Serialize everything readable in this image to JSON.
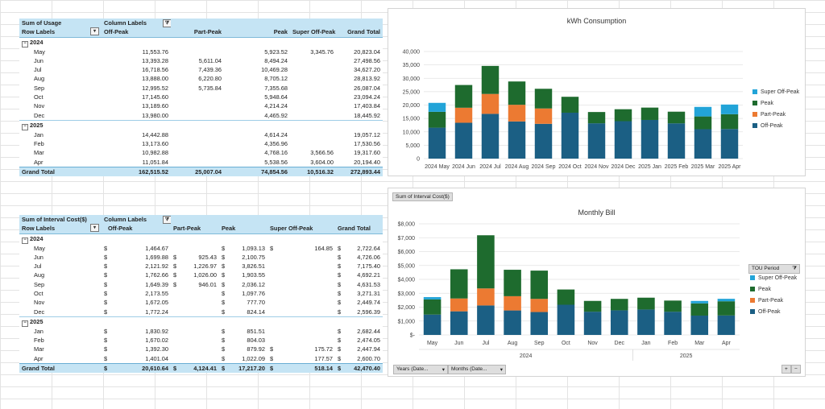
{
  "usage_pivot": {
    "corner": "Sum of Usage",
    "col_labels": "Column Labels",
    "row_labels": "Row Labels",
    "headers": [
      "Off-Peak",
      "Part-Peak",
      "Peak",
      "Super Off-Peak",
      "Grand Total"
    ],
    "years": [
      {
        "label": "2024",
        "rows": [
          {
            "m": "May",
            "v": [
              "11,553.76",
              "",
              "5,923.52",
              "3,345.76",
              "20,823.04"
            ]
          },
          {
            "m": "Jun",
            "v": [
              "13,393.28",
              "5,611.04",
              "8,494.24",
              "",
              "27,498.56"
            ]
          },
          {
            "m": "Jul",
            "v": [
              "16,718.56",
              "7,439.36",
              "10,469.28",
              "",
              "34,627.20"
            ]
          },
          {
            "m": "Aug",
            "v": [
              "13,888.00",
              "6,220.80",
              "8,705.12",
              "",
              "28,813.92"
            ]
          },
          {
            "m": "Sep",
            "v": [
              "12,995.52",
              "5,735.84",
              "7,355.68",
              "",
              "26,087.04"
            ]
          },
          {
            "m": "Oct",
            "v": [
              "17,145.60",
              "",
              "5,948.64",
              "",
              "23,094.24"
            ]
          },
          {
            "m": "Nov",
            "v": [
              "13,189.60",
              "",
              "4,214.24",
              "",
              "17,403.84"
            ]
          },
          {
            "m": "Dec",
            "v": [
              "13,980.00",
              "",
              "4,465.92",
              "",
              "18,445.92"
            ]
          }
        ]
      },
      {
        "label": "2025",
        "rows": [
          {
            "m": "Jan",
            "v": [
              "14,442.88",
              "",
              "4,614.24",
              "",
              "19,057.12"
            ]
          },
          {
            "m": "Feb",
            "v": [
              "13,173.60",
              "",
              "4,356.96",
              "",
              "17,530.56"
            ]
          },
          {
            "m": "Mar",
            "v": [
              "10,982.88",
              "",
              "4,768.16",
              "3,566.56",
              "19,317.60"
            ]
          },
          {
            "m": "Apr",
            "v": [
              "11,051.84",
              "",
              "5,538.56",
              "3,604.00",
              "20,194.40"
            ]
          }
        ]
      }
    ],
    "grand_total_label": "Grand Total",
    "grand_total": [
      "162,515.52",
      "25,007.04",
      "74,854.56",
      "10,516.32",
      "272,893.44"
    ]
  },
  "cost_pivot": {
    "corner": "Sum of Interval Cost($)",
    "col_labels": "Column Labels",
    "row_labels": "Row Labels",
    "headers": [
      "Off-Peak",
      "Part-Peak",
      "Peak",
      "Super Off-Peak",
      "Grand Total"
    ],
    "currency": "$",
    "years": [
      {
        "label": "2024",
        "rows": [
          {
            "m": "May",
            "v": [
              "1,464.67",
              "",
              "1,093.13",
              "164.85",
              "2,722.64"
            ]
          },
          {
            "m": "Jun",
            "v": [
              "1,699.88",
              "925.43",
              "2,100.75",
              "",
              "4,726.06"
            ]
          },
          {
            "m": "Jul",
            "v": [
              "2,121.92",
              "1,226.97",
              "3,826.51",
              "",
              "7,175.40"
            ]
          },
          {
            "m": "Aug",
            "v": [
              "1,762.66",
              "1,026.00",
              "1,903.55",
              "",
              "4,692.21"
            ]
          },
          {
            "m": "Sep",
            "v": [
              "1,649.39",
              "946.01",
              "2,036.12",
              "",
              "4,631.53"
            ]
          },
          {
            "m": "Oct",
            "v": [
              "2,173.55",
              "",
              "1,097.76",
              "",
              "3,271.31"
            ]
          },
          {
            "m": "Nov",
            "v": [
              "1,672.05",
              "",
              "777.70",
              "",
              "2,449.74"
            ]
          },
          {
            "m": "Dec",
            "v": [
              "1,772.24",
              "",
              "824.14",
              "",
              "2,596.39"
            ]
          }
        ]
      },
      {
        "label": "2025",
        "rows": [
          {
            "m": "Jan",
            "v": [
              "1,830.92",
              "",
              "851.51",
              "",
              "2,682.44"
            ]
          },
          {
            "m": "Feb",
            "v": [
              "1,670.02",
              "",
              "804.03",
              "",
              "2,474.05"
            ]
          },
          {
            "m": "Mar",
            "v": [
              "1,392.30",
              "",
              "879.92",
              "175.72",
              "2,447.94"
            ]
          },
          {
            "m": "Apr",
            "v": [
              "1,401.04",
              "",
              "1,022.09",
              "177.57",
              "2,600.70"
            ]
          }
        ]
      }
    ],
    "grand_total_label": "Grand Total",
    "grand_total": [
      "20,610.64",
      "4,124.41",
      "17,217.20",
      "518.14",
      "42,470.40"
    ]
  },
  "colors": {
    "off_peak": "#1b5f84",
    "part_peak": "#ec7a32",
    "peak": "#1e6b2e",
    "super_off_peak": "#22a4d8"
  },
  "chart_data": [
    {
      "type": "bar",
      "stacked": true,
      "title": "kWh Consumption",
      "categories": [
        "2024 May",
        "2024 Jun",
        "2024 Jul",
        "2024 Aug",
        "2024 Sep",
        "2024 Oct",
        "2024 Nov",
        "2024 Dec",
        "2025 Jan",
        "2025 Feb",
        "2025 Mar",
        "2025 Apr"
      ],
      "series": [
        {
          "name": "Off-Peak",
          "values": [
            11553.76,
            13393.28,
            16718.56,
            13888.0,
            12995.52,
            17145.6,
            13189.6,
            13980.0,
            14442.88,
            13173.6,
            10982.88,
            11051.84
          ]
        },
        {
          "name": "Part-Peak",
          "values": [
            0,
            5611.04,
            7439.36,
            6220.8,
            5735.84,
            0,
            0,
            0,
            0,
            0,
            0,
            0
          ]
        },
        {
          "name": "Peak",
          "values": [
            5923.52,
            8494.24,
            10469.28,
            8705.12,
            7355.68,
            5948.64,
            4214.24,
            4465.92,
            4614.24,
            4356.96,
            4768.16,
            5538.56
          ]
        },
        {
          "name": "Super Off-Peak",
          "values": [
            3345.76,
            0,
            0,
            0,
            0,
            0,
            0,
            0,
            0,
            0,
            3566.56,
            3604.0
          ]
        }
      ],
      "ylim": [
        0,
        40000
      ],
      "yticks": [
        "0",
        "5,000",
        "10,000",
        "15,000",
        "20,000",
        "25,000",
        "30,000",
        "35,000",
        "40,000"
      ],
      "legend": "right"
    },
    {
      "type": "bar",
      "stacked": true,
      "title": "Monthly Bill",
      "categories": [
        "May",
        "Jun",
        "Jul",
        "Aug",
        "Sep",
        "Oct",
        "Nov",
        "Dec",
        "Jan",
        "Feb",
        "Mar",
        "Apr"
      ],
      "groups": [
        "2024",
        "2025"
      ],
      "series": [
        {
          "name": "Off-Peak",
          "values": [
            1464.67,
            1699.88,
            2121.92,
            1762.66,
            1649.39,
            2173.55,
            1672.05,
            1772.24,
            1830.92,
            1670.02,
            1392.3,
            1401.04
          ]
        },
        {
          "name": "Part-Peak",
          "values": [
            0,
            925.43,
            1226.97,
            1026.0,
            946.01,
            0,
            0,
            0,
            0,
            0,
            0,
            0
          ]
        },
        {
          "name": "Peak",
          "values": [
            1093.13,
            2100.75,
            3826.51,
            1903.55,
            2036.12,
            1097.76,
            777.7,
            824.14,
            851.51,
            804.03,
            879.92,
            1022.09
          ]
        },
        {
          "name": "Super Off-Peak",
          "values": [
            164.85,
            0,
            0,
            0,
            0,
            0,
            0,
            0,
            0,
            0,
            175.72,
            177.57
          ]
        }
      ],
      "ylim": [
        0,
        8000
      ],
      "yticks": [
        "$-",
        "$1,000",
        "$2,000",
        "$3,000",
        "$4,000",
        "$5,000",
        "$6,000",
        "$7,000",
        "$8,000"
      ],
      "legend": "right",
      "legend_title": "TOU Period",
      "field_button": "Sum of Interval Cost($)",
      "axis_buttons": [
        "Years (Date...",
        "Months (Date..."
      ]
    }
  ]
}
